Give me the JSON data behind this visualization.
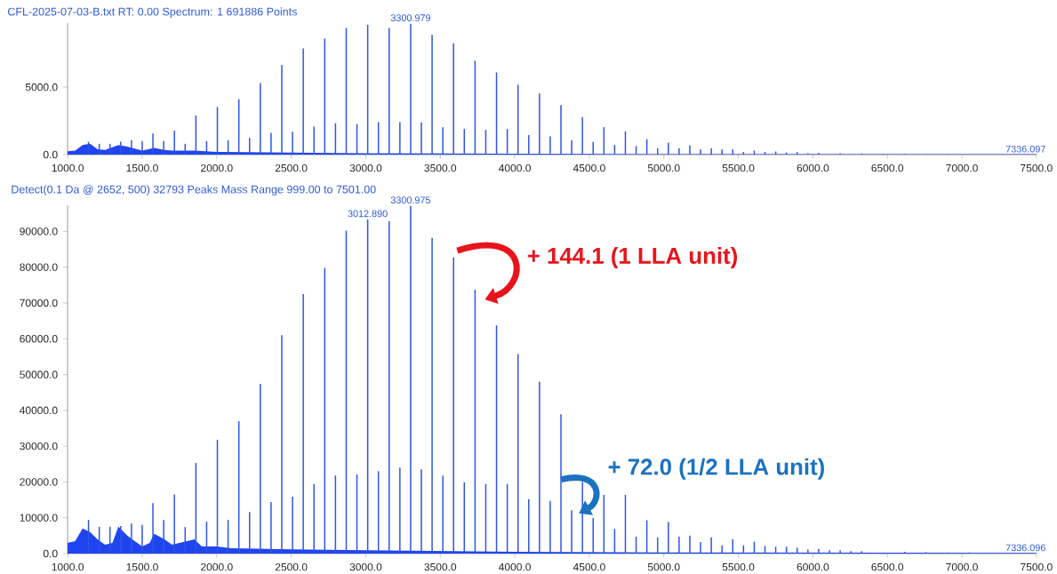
{
  "chart_data": [
    {
      "type": "bar",
      "title": "CFL-2025-07-03-B.txt  RT: 0.00  Spectrum: 1  691886 Points",
      "xlim": [
        999,
        7501
      ],
      "ylim": [
        0,
        9750
      ],
      "xticks": [
        {
          "value": 1000,
          "label": "1000.0"
        },
        {
          "value": 1500,
          "label": "1500.0"
        },
        {
          "value": 2000,
          "label": "2000.0"
        },
        {
          "value": 2500,
          "label": "2500.0"
        },
        {
          "value": 3000,
          "label": "3000.0"
        },
        {
          "value": 3500,
          "label": "3500.0"
        },
        {
          "value": 4000,
          "label": "4000.0"
        },
        {
          "value": 4500,
          "label": "4500.0"
        },
        {
          "value": 5000,
          "label": "5000.0"
        },
        {
          "value": 5500,
          "label": "5500.0"
        },
        {
          "value": 6000,
          "label": "6000.0"
        },
        {
          "value": 6500,
          "label": "6500.0"
        },
        {
          "value": 7000,
          "label": "7000.0"
        },
        {
          "value": 7500,
          "label": "7500.0"
        }
      ],
      "yticks": [
        {
          "value": 0,
          "label": "0.0"
        },
        {
          "value": 5000,
          "label": "5000.0"
        }
      ],
      "series": [
        {
          "type": "area",
          "color": "#1f45f0",
          "x": [
            999,
            1050,
            1100,
            1150,
            1200,
            1250,
            1340,
            1400,
            1450,
            1500,
            1580,
            1650,
            1700,
            1850,
            2000,
            2500,
            3000,
            4000,
            5000,
            7501
          ],
          "values": [
            250,
            300,
            700,
            800,
            400,
            350,
            700,
            600,
            450,
            300,
            500,
            350,
            300,
            300,
            200,
            150,
            100,
            60,
            40,
            30
          ]
        },
        {
          "color": "#2f55e4",
          "x": [
            1139.6,
            1283.7,
            1427.8,
            1571.9,
            1716.0,
            1860.1,
            2004.2,
            2148.3,
            2292.4,
            2436.5,
            2580.6,
            2724.7,
            2868.8,
            3012.9,
            3156.9,
            3300.979,
            3445.1,
            3589.2,
            3733.3,
            3877.4,
            4021.5,
            4165.6,
            4309.7,
            4453.8,
            4597.9,
            4742.0,
            4886.1,
            5030.2,
            5174.3,
            5318.4,
            5462.5,
            5606.6,
            5750.7,
            5894.8,
            6038.9,
            6183.0,
            6327.1,
            6471.2,
            6615.3,
            6759.4,
            6903.5
          ],
          "values": [
            950,
            800,
            1070,
            1570,
            1780,
            2900,
            3530,
            4110,
            5300,
            6650,
            7870,
            8600,
            9390,
            9620,
            9390,
            9700,
            8880,
            8250,
            6950,
            6090,
            5180,
            4520,
            3680,
            2790,
            2030,
            1730,
            1140,
            890,
            690,
            460,
            380,
            300,
            230,
            180,
            130,
            100,
            80,
            60,
            50,
            40,
            40
          ]
        },
        {
          "color": "#2f55e4",
          "x": [
            1211.6,
            1355.7,
            1499.8,
            1643.9,
            1788.0,
            1932.1,
            2076.2,
            2220.3,
            2364.4,
            2508.5,
            2652.6,
            2796.7,
            2940.8,
            3084.9,
            3229.0,
            3373.0,
            3517.1,
            3661.2,
            3805.3,
            3949.4,
            4093.5,
            4237.6,
            4381.7,
            4525.8,
            4669.9,
            4814.0,
            4958.1,
            5102.2,
            5246.3,
            5390.4,
            5534.5,
            5678.6,
            5822.7,
            5966.8
          ],
          "values": [
            800,
            950,
            1000,
            1000,
            800,
            1000,
            1070,
            1240,
            1620,
            1700,
            2080,
            2330,
            2260,
            2410,
            2410,
            2390,
            2030,
            1900,
            1830,
            1900,
            1450,
            1350,
            1070,
            940,
            710,
            630,
            460,
            460,
            380,
            380,
            200,
            200,
            150,
            100
          ]
        }
      ],
      "annotations": [
        {
          "text": "3300.979",
          "x": 3300.979,
          "y": 9700
        },
        {
          "text": "7336.097",
          "x": 7336.097,
          "y": 30
        }
      ]
    },
    {
      "type": "bar",
      "title": "Detect(0.1 Da @ 2652, 500)  32793 Peaks  Mass Range 999.00 to 7501.00",
      "xlim": [
        999,
        7501
      ],
      "ylim": [
        0,
        97300
      ],
      "xticks": [
        {
          "value": 1000,
          "label": "1000.0"
        },
        {
          "value": 1500,
          "label": "1500.0"
        },
        {
          "value": 2000,
          "label": "2000.0"
        },
        {
          "value": 2500,
          "label": "2500.0"
        },
        {
          "value": 3000,
          "label": "3000.0"
        },
        {
          "value": 3500,
          "label": "3500.0"
        },
        {
          "value": 4000,
          "label": "4000.0"
        },
        {
          "value": 4500,
          "label": "4500.0"
        },
        {
          "value": 5000,
          "label": "5000.0"
        },
        {
          "value": 5500,
          "label": "5500.0"
        },
        {
          "value": 6000,
          "label": "6000.0"
        },
        {
          "value": 6500,
          "label": "6500.0"
        },
        {
          "value": 7000,
          "label": "7000.0"
        },
        {
          "value": 7500,
          "label": "7500.0"
        }
      ],
      "yticks": [
        {
          "value": 0,
          "label": "0.0"
        },
        {
          "value": 10000,
          "label": "10000.0"
        },
        {
          "value": 20000,
          "label": "20000.0"
        },
        {
          "value": 30000,
          "label": "30000.0"
        },
        {
          "value": 40000,
          "label": "40000.0"
        },
        {
          "value": 50000,
          "label": "50000.0"
        },
        {
          "value": 60000,
          "label": "60000.0"
        },
        {
          "value": 70000,
          "label": "70000.0"
        },
        {
          "value": 80000,
          "label": "80000.0"
        },
        {
          "value": 90000,
          "label": "90000.0"
        }
      ],
      "series": [
        {
          "type": "area",
          "color": "#1f45f0",
          "x": [
            999,
            1050,
            1100,
            1150,
            1200,
            1250,
            1300,
            1340,
            1400,
            1450,
            1500,
            1550,
            1580,
            1650,
            1700,
            1800,
            1850,
            1900,
            2000,
            2100,
            2500,
            3000,
            4000,
            5000,
            7501
          ],
          "values": [
            3000,
            3500,
            7000,
            6000,
            4000,
            2500,
            3000,
            7500,
            5000,
            3500,
            2000,
            3000,
            5500,
            4000,
            2500,
            3500,
            4000,
            2000,
            2000,
            1500,
            1200,
            900,
            500,
            300,
            200
          ]
        },
        {
          "color": "#2f55e4",
          "x": [
            1139.6,
            1283.7,
            1427.8,
            1571.9,
            1716.0,
            1860.1,
            2004.2,
            2148.3,
            2292.4,
            2436.5,
            2580.6,
            2724.7,
            2868.8,
            3012.89,
            3156.9,
            3300.975,
            3445.1,
            3589.2,
            3733.3,
            3877.4,
            4021.5,
            4165.6,
            4309.7,
            4453.8,
            4597.9,
            4742.0,
            4886.1,
            5030.2,
            5174.3,
            5318.4,
            5462.5,
            5606.6,
            5750.7,
            5894.8,
            6038.9,
            6183.0,
            6327.1,
            6471.2,
            6615.3,
            6759.4,
            6903.5,
            7047.6,
            7191.7,
            7336.096
          ],
          "values": [
            9400,
            7500,
            8400,
            14100,
            16500,
            25300,
            31800,
            37000,
            47400,
            61000,
            72500,
            79800,
            90200,
            93300,
            92800,
            97100,
            88200,
            82700,
            73700,
            63700,
            55700,
            48000,
            38900,
            20000,
            16400,
            16400,
            9300,
            8800,
            5000,
            4500,
            4000,
            3300,
            1900,
            1600,
            1300,
            900,
            700,
            null,
            500,
            400,
            300,
            300,
            200,
            200
          ]
        },
        {
          "color": "#2f55e4",
          "x": [
            1211.6,
            1355.7,
            1499.8,
            1643.9,
            1788.0,
            1932.1,
            2076.2,
            2220.3,
            2364.4,
            2508.5,
            2652.6,
            2796.7,
            2940.8,
            3084.9,
            3229.0,
            3373.0,
            3517.1,
            3661.2,
            3805.3,
            3949.4,
            4093.5,
            4237.6,
            4381.7,
            4525.8,
            4669.9,
            4814.0,
            4958.1,
            5102.2,
            5246.3,
            5390.4,
            5534.5,
            5678.6,
            5822.7,
            5966.8,
            6110.9,
            6255.0
          ],
          "values": [
            7500,
            7700,
            8000,
            9400,
            7400,
            8900,
            9400,
            11600,
            14400,
            15900,
            19400,
            21800,
            22100,
            23000,
            24000,
            23500,
            21800,
            19900,
            19400,
            19400,
            15200,
            14700,
            12100,
            9900,
            6900,
            4700,
            4500,
            4700,
            3200,
            2300,
            2300,
            2100,
            1900,
            1100,
            900,
            700
          ]
        }
      ],
      "annotations": [
        {
          "text": "3012.890",
          "x": 3012.89,
          "y": 93300
        },
        {
          "text": "3300.975",
          "x": 3300.975,
          "y": 97100
        },
        {
          "text": "7336.096",
          "x": 7336.096,
          "y": 200
        },
        {
          "text": "+ 144.1 (1 LLA unit)",
          "x": 3733.3,
          "y": 73700
        },
        {
          "text": "+ 72.0 (1/2 LLA unit)",
          "x": 4453.8,
          "y": 11000
        }
      ]
    }
  ]
}
